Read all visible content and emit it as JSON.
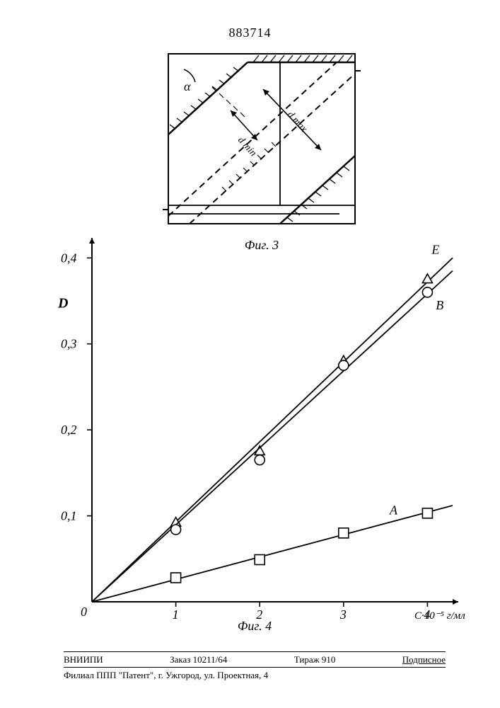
{
  "page_number": "883714",
  "fig3": {
    "caption": "Фиг. 3",
    "alpha_label": "α",
    "dmin_label": "d min",
    "dmax_label": "d max",
    "stroke_color": "#000000",
    "dash_color": "#000000",
    "hatch_color": "#000000",
    "line_width": 2
  },
  "chart": {
    "caption": "Фиг. 4",
    "type": "line",
    "x_axis": {
      "ticks": [
        "0",
        "1",
        "2",
        "3",
        "4"
      ],
      "unit_label": "C·10⁻⁵ г/мл",
      "min": 0,
      "max": 4.3
    },
    "y_axis": {
      "label": "D",
      "ticks": [
        "0,1",
        "0,2",
        "0,3",
        "0,4"
      ],
      "min": 0,
      "max": 0.42
    },
    "series": {
      "E": {
        "label": "Е",
        "marker": "triangle",
        "color": "#000000",
        "points": [
          [
            0,
            0
          ],
          [
            1,
            0.092
          ],
          [
            2,
            0.175
          ],
          [
            3,
            0.28
          ],
          [
            4,
            0.375
          ]
        ],
        "line_end": [
          4.3,
          0.4
        ]
      },
      "B": {
        "label": "В",
        "marker": "circle",
        "color": "#000000",
        "points": [
          [
            0,
            0
          ],
          [
            1,
            0.084
          ],
          [
            2,
            0.165
          ],
          [
            3,
            0.275
          ],
          [
            4,
            0.36
          ]
        ],
        "line_end": [
          4.3,
          0.385
        ]
      },
      "A": {
        "label": "А",
        "marker": "square",
        "color": "#000000",
        "points": [
          [
            0,
            0
          ],
          [
            1,
            0.028
          ],
          [
            2,
            0.049
          ],
          [
            3,
            0.08
          ],
          [
            4,
            0.103
          ]
        ],
        "line_end": [
          4.3,
          0.112
        ]
      }
    },
    "axis_color": "#000000",
    "tick_color": "#000000",
    "line_width": 1.8,
    "marker_size": 7,
    "background_color": "#ffffff",
    "label_fontsize": 18
  },
  "footer": {
    "line1": {
      "org": "ВНИИПИ",
      "order": "Заказ 10211/64",
      "tirage": "Тираж 910",
      "sub": "Подписное"
    },
    "line2": "Филиал ППП \"Патент\", г. Ужгород, ул. Проектная, 4"
  }
}
